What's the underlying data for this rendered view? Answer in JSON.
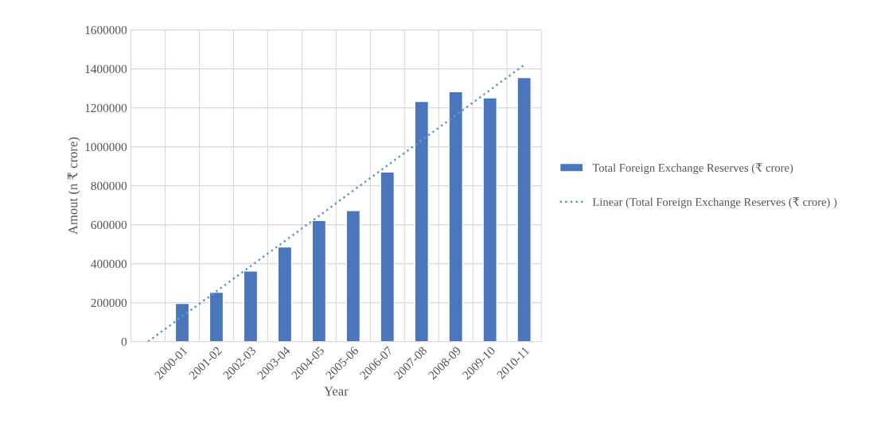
{
  "chart_data": {
    "type": "bar",
    "xlabel": "Year",
    "ylabel": "Amout (n ₹ crore)",
    "categories": [
      null,
      "2000-01",
      "2001-02",
      "2002-03",
      "2003-04",
      "2004-05",
      "2005-06",
      "2006-07",
      "2007-08",
      "2008-09",
      "2009-10",
      "2010-11"
    ],
    "series": [
      {
        "name": "Total Foreign Exchange Reserves (₹ crore)",
        "color": "#4a76bd",
        "values": [
          null,
          196000,
          253000,
          362000,
          486000,
          622000,
          673000,
          871000,
          1233000,
          1283000,
          1251000,
          1355000
        ]
      },
      {
        "name": "Linear (Total Foreign Exchange Reserves (₹ crore) )",
        "type": "line",
        "color": "#5b9bd5",
        "line_style": "dotted",
        "values": [
          0,
          129000,
          258000,
          387000,
          516000,
          645000,
          775000,
          904000,
          1033000,
          1162000,
          1291000,
          1420000
        ]
      }
    ],
    "ylim": [
      0,
      1600000
    ],
    "yticks": [
      0,
      200000,
      400000,
      600000,
      800000,
      1000000,
      1200000,
      1400000,
      1600000
    ],
    "grid": true,
    "legend": "right"
  }
}
